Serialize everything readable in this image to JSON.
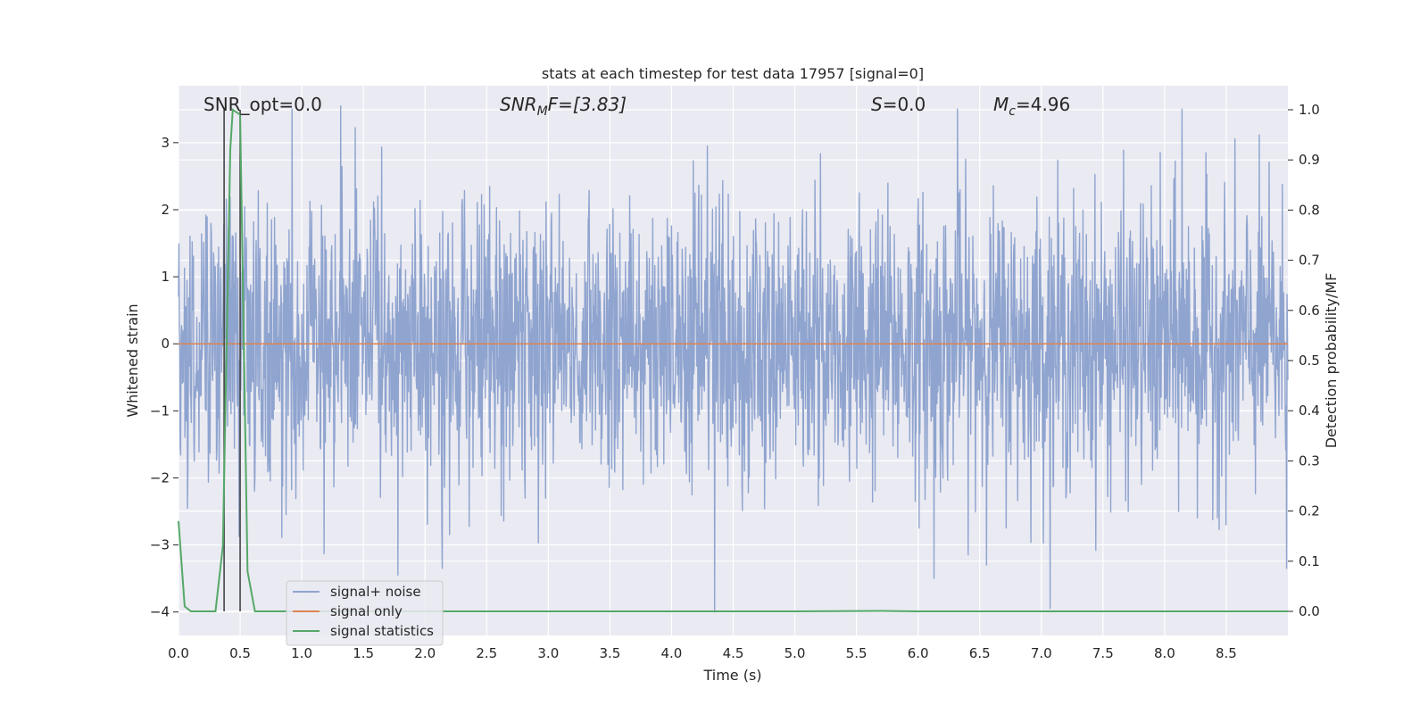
{
  "chart_data": {
    "type": "line",
    "title": "stats at each timestep for test data 17957 [signal=0]",
    "xlabel": "Time (s)",
    "ylabel": "Whitened strain",
    "y2label": "Detection probability/MF",
    "xlim": [
      0,
      9.0
    ],
    "ylim": [
      -4.35,
      3.85
    ],
    "y2lim": [
      -0.048,
      1.048
    ],
    "xticks": [
      0.0,
      0.5,
      1.0,
      1.5,
      2.0,
      2.5,
      3.0,
      3.5,
      4.0,
      4.5,
      5.0,
      5.5,
      6.0,
      6.5,
      7.0,
      7.5,
      8.0,
      8.5
    ],
    "xtick_labels": [
      "0.0",
      "0.5",
      "1.0",
      "1.5",
      "2.0",
      "2.5",
      "3.0",
      "3.5",
      "4.0",
      "4.5",
      "5.0",
      "5.5",
      "6.0",
      "6.5",
      "7.0",
      "7.5",
      "8.0",
      "8.5"
    ],
    "yticks": [
      -4,
      -3,
      -2,
      -1,
      0,
      1,
      2,
      3
    ],
    "ytick_labels": [
      "−4",
      "−3",
      "−2",
      "−1",
      "0",
      "1",
      "2",
      "3"
    ],
    "y2ticks": [
      0.0,
      0.1,
      0.2,
      0.3,
      0.4,
      0.5,
      0.6,
      0.7,
      0.8,
      0.9,
      1.0
    ],
    "y2tick_labels": [
      "0.0",
      "0.1",
      "0.2",
      "0.3",
      "0.4",
      "0.5",
      "0.6",
      "0.7",
      "0.8",
      "0.9",
      "1.0"
    ],
    "grid": true,
    "legend_position": "lower-left",
    "annotations": {
      "snr_opt": "SNR_opt=0.0",
      "snr_mf_base": "SNR",
      "snr_mf_sub": "M",
      "snr_mf_rest": "F=[3.83]",
      "s_label": "S",
      "s_value": "=0.0",
      "mc_base": "M",
      "mc_sub": "c",
      "mc_value": "=4.96"
    },
    "series": [
      {
        "name": "signal+ noise",
        "color": "#8fa4cf",
        "axis": "left",
        "description_peaks": [
          [
            0.92,
            3.5
          ],
          [
            6.32,
            3.5
          ],
          [
            8.14,
            3.5
          ],
          [
            1.78,
            -3.45
          ],
          [
            4.35,
            -4.0
          ],
          [
            6.13,
            -3.5
          ],
          [
            2.14,
            -3.35
          ],
          [
            8.99,
            -3.35
          ]
        ]
      },
      {
        "name": "signal only",
        "color": "#dd8452",
        "axis": "left",
        "x": [
          0.0,
          9.0
        ],
        "y": [
          0.0,
          0.0
        ]
      },
      {
        "name": "signal statistics",
        "color": "#55a868",
        "axis": "right",
        "x": [
          0.0,
          0.05,
          0.1,
          0.3,
          0.36,
          0.42,
          0.44,
          0.5,
          0.56,
          0.62,
          0.7,
          1.0,
          2.0,
          3.0,
          4.0,
          5.0,
          5.7,
          6.0,
          7.0,
          8.0,
          9.0
        ],
        "y": [
          0.18,
          0.01,
          0.0,
          0.0,
          0.13,
          0.92,
          1.0,
          0.99,
          0.08,
          0.0,
          0.0,
          0.0,
          0.0,
          0.0,
          0.0,
          0.0,
          0.001,
          0.0,
          0.0,
          0.0,
          0.0
        ]
      }
    ],
    "vlines": [
      0.37,
      0.5
    ],
    "vline_color": "#444444"
  }
}
